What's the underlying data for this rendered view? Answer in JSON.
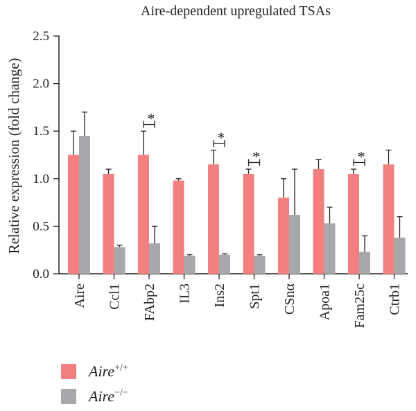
{
  "chart_data": {
    "type": "bar",
    "title": "Aire-dependent upregulated TSAs",
    "ylabel": "Relative expression (fold change)",
    "xlabel": "",
    "ylim": [
      0,
      2.5
    ],
    "yticks": [
      "0.0",
      "0.5",
      "1.0",
      "1.5",
      "2.0",
      "2.5"
    ],
    "categories": [
      "Aire",
      "Ccl1",
      "FAbp2",
      "IL3",
      "Ins2",
      "Spt1",
      "CSnα",
      "Apoa1",
      "Fam25c",
      "Ctrb1"
    ],
    "series": [
      {
        "name": "Aire+/+",
        "legend_base": "Aire",
        "legend_sup": "+/+",
        "color": "#f47f80",
        "values": [
          1.25,
          1.05,
          1.25,
          0.98,
          1.15,
          1.05,
          0.8,
          1.1,
          1.05,
          1.15
        ],
        "errors": [
          0.25,
          0.05,
          0.25,
          0.02,
          0.15,
          0.05,
          0.2,
          0.1,
          0.05,
          0.15
        ]
      },
      {
        "name": "Aire−/−",
        "legend_base": "Aire",
        "legend_sup": "−/−",
        "color": "#a7a8ab",
        "values": [
          1.45,
          0.28,
          0.32,
          0.19,
          0.2,
          0.19,
          0.62,
          0.53,
          0.23,
          0.38
        ],
        "errors": [
          0.25,
          0.02,
          0.18,
          0.01,
          0.01,
          0.01,
          0.48,
          0.17,
          0.17,
          0.22
        ]
      }
    ],
    "significance": [
      {
        "category": "FAbp2",
        "y": 1.57,
        "label": "*"
      },
      {
        "category": "Ins2",
        "y": 1.37,
        "label": "*"
      },
      {
        "category": "Spt1",
        "y": 1.17,
        "label": "*"
      },
      {
        "category": "Fam25c",
        "y": 1.17,
        "label": "*"
      }
    ],
    "legend_position": "bottom-left",
    "grid": false
  }
}
